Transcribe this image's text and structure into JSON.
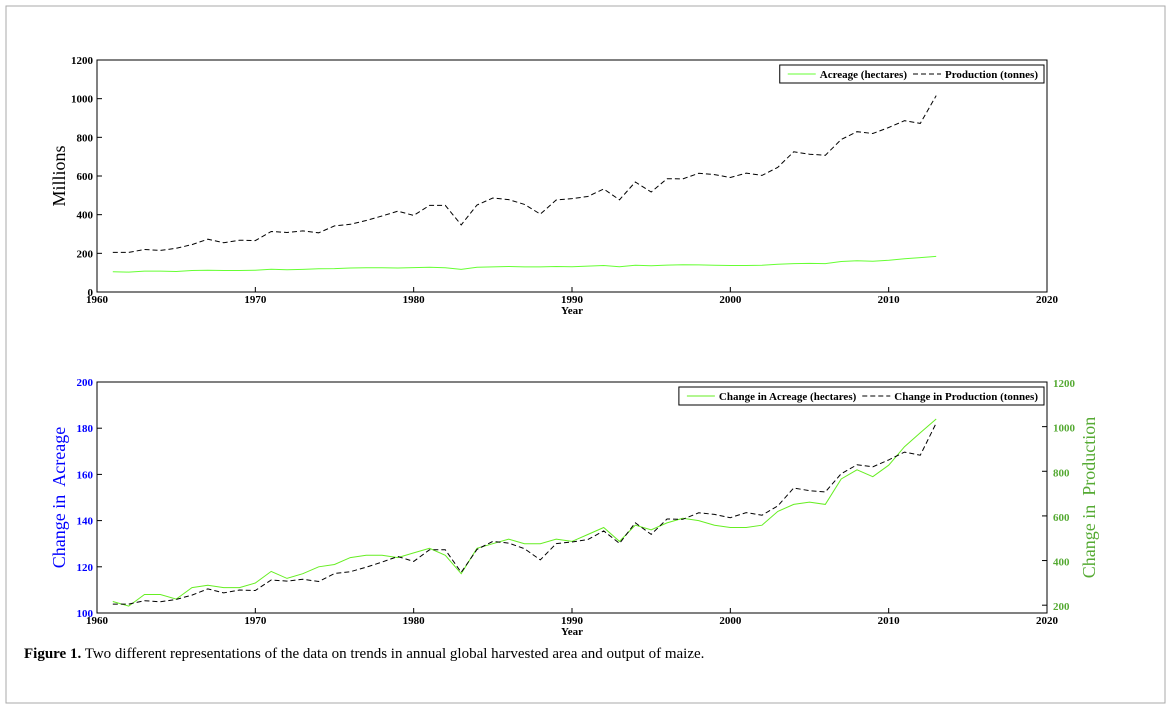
{
  "chart_data": [
    {
      "type": "line",
      "x": [
        1961,
        1962,
        1963,
        1964,
        1965,
        1966,
        1967,
        1968,
        1969,
        1970,
        1971,
        1972,
        1973,
        1974,
        1975,
        1976,
        1977,
        1978,
        1979,
        1980,
        1981,
        1982,
        1983,
        1984,
        1985,
        1986,
        1987,
        1988,
        1989,
        1990,
        1991,
        1992,
        1993,
        1994,
        1995,
        1996,
        1997,
        1998,
        1999,
        2000,
        2001,
        2002,
        2003,
        2004,
        2005,
        2006,
        2007,
        2008,
        2009,
        2010,
        2011,
        2012,
        2013
      ],
      "xlim": [
        1960,
        2020
      ],
      "xticks": [
        1960,
        1970,
        1980,
        1990,
        2000,
        2010,
        2020
      ],
      "ylim": [
        0,
        1200
      ],
      "yticks": [
        0,
        200,
        400,
        600,
        800,
        1000,
        1200
      ],
      "xlabel": "Year",
      "ylabel": "Millions",
      "legend": "upper right",
      "series": [
        {
          "name": "Acreage (hectares)",
          "color": "#66ff33",
          "style": "solid",
          "values": [
            105,
            103,
            108,
            108,
            106,
            111,
            112,
            111,
            111,
            113,
            118,
            115,
            117,
            120,
            121,
            124,
            125,
            125,
            124,
            126,
            128,
            125,
            117,
            128,
            130,
            132,
            130,
            130,
            132,
            131,
            134,
            137,
            131,
            138,
            136,
            139,
            141,
            140,
            138,
            137,
            137,
            138,
            144,
            147,
            148,
            147,
            158,
            162,
            159,
            164,
            172,
            178,
            184
          ]
        },
        {
          "name": "Production (tonnes)",
          "color": "#000000",
          "style": "dashed",
          "values": [
            205,
            205,
            220,
            215,
            226,
            245,
            273,
            255,
            268,
            266,
            313,
            308,
            316,
            306,
            342,
            350,
            370,
            393,
            418,
            396,
            448,
            448,
            347,
            450,
            486,
            478,
            453,
            403,
            476,
            483,
            494,
            533,
            477,
            569,
            517,
            586,
            585,
            614,
            607,
            592,
            615,
            603,
            645,
            725,
            713,
            707,
            789,
            829,
            820,
            851,
            886,
            872,
            1016
          ]
        }
      ]
    },
    {
      "type": "line",
      "x": [
        1961,
        1962,
        1963,
        1964,
        1965,
        1966,
        1967,
        1968,
        1969,
        1970,
        1971,
        1972,
        1973,
        1974,
        1975,
        1976,
        1977,
        1978,
        1979,
        1980,
        1981,
        1982,
        1983,
        1984,
        1985,
        1986,
        1987,
        1988,
        1989,
        1990,
        1991,
        1992,
        1993,
        1994,
        1995,
        1996,
        1997,
        1998,
        1999,
        2000,
        2001,
        2002,
        2003,
        2004,
        2005,
        2006,
        2007,
        2008,
        2009,
        2010,
        2011,
        2012,
        2013
      ],
      "xlim": [
        1960,
        2020
      ],
      "xticks": [
        1960,
        1970,
        1980,
        1990,
        2000,
        2010,
        2020
      ],
      "ylim": [
        100,
        200
      ],
      "yticks": [
        100,
        120,
        140,
        160,
        180,
        200
      ],
      "y2lim": [
        165,
        1200
      ],
      "y2ticks": [
        200,
        400,
        600,
        800,
        1000,
        1200
      ],
      "xlabel": "Year",
      "ylabel": "Change in  Acreage",
      "ylabel_color": "#0000ff",
      "y2label": "Change in  Production",
      "y2label_color": "#55aa33",
      "legend": "upper right",
      "series": [
        {
          "name": "Change in Acreage (hectares)",
          "color": "#66ee22",
          "style": "solid",
          "values": [
            105,
            103,
            108,
            108,
            106,
            111,
            112,
            111,
            111,
            113,
            118,
            115,
            117,
            120,
            121,
            124,
            125,
            125,
            124,
            126,
            128,
            125,
            117,
            128,
            130,
            132,
            130,
            130,
            132,
            131,
            134,
            137,
            131,
            138,
            136,
            139,
            141,
            140,
            138,
            137,
            137,
            138,
            144,
            147,
            148,
            147,
            158,
            162,
            159,
            164,
            172,
            178,
            184
          ]
        },
        {
          "name": "Change in Production (tonnes)",
          "color": "#000000",
          "style": "dashed",
          "axis": "y2",
          "values": [
            205,
            205,
            220,
            215,
            226,
            245,
            273,
            255,
            268,
            266,
            313,
            308,
            316,
            306,
            342,
            350,
            370,
            393,
            418,
            396,
            448,
            448,
            347,
            450,
            486,
            478,
            453,
            403,
            476,
            483,
            494,
            533,
            477,
            569,
            517,
            586,
            585,
            614,
            607,
            592,
            615,
            603,
            645,
            725,
            713,
            707,
            789,
            829,
            820,
            851,
            886,
            872,
            1016
          ]
        }
      ]
    }
  ],
  "caption": {
    "label": "Figure 1.",
    "text": "Two different representations of the data on trends in annual global harvested area and output of maize."
  }
}
